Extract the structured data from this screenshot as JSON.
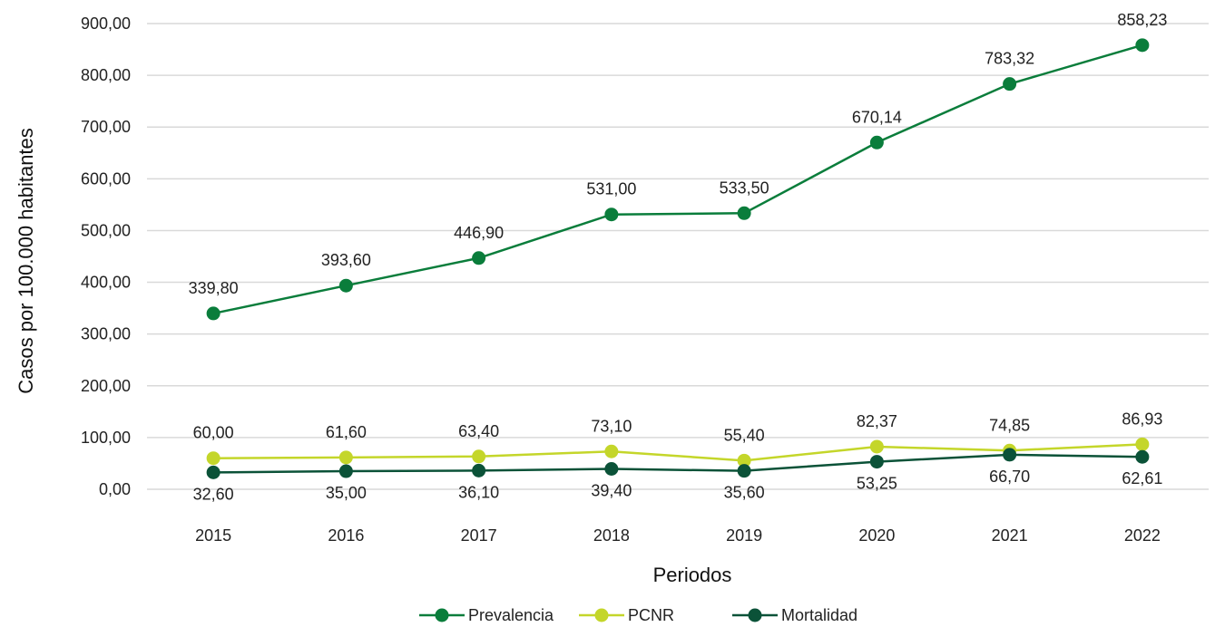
{
  "chart_data": {
    "type": "line",
    "title": "",
    "xlabel": "Periodos",
    "ylabel": "Casos por 100.000 habitantes",
    "ylim": [
      0,
      900
    ],
    "yticks": [
      "0,00",
      "100,00",
      "200,00",
      "300,00",
      "400,00",
      "500,00",
      "600,00",
      "700,00",
      "800,00",
      "900,00"
    ],
    "grid": "horizontal",
    "legend_position": "bottom",
    "categories": [
      "2015",
      "2016",
      "2017",
      "2018",
      "2019",
      "2020",
      "2021",
      "2022"
    ],
    "series": [
      {
        "name": "Prevalencia",
        "color": "#0a7d3b",
        "values": [
          339.8,
          393.6,
          446.9,
          531.0,
          533.5,
          670.14,
          783.32,
          858.23
        ],
        "labels": [
          "339,80",
          "393,60",
          "446,90",
          "531,00",
          "533,50",
          "670,14",
          "783,32",
          "858,23"
        ],
        "label_position": "above"
      },
      {
        "name": "PCNR",
        "color": "#c4d62a",
        "values": [
          60.0,
          61.6,
          63.4,
          73.1,
          55.4,
          82.37,
          74.85,
          86.93
        ],
        "labels": [
          "60,00",
          "61,60",
          "63,40",
          "73,10",
          "55,40",
          "82,37",
          "74,85",
          "86,93"
        ],
        "label_position": "above"
      },
      {
        "name": "Mortalidad",
        "color": "#0b5238",
        "values": [
          32.6,
          35.0,
          36.1,
          39.4,
          35.6,
          53.25,
          66.7,
          62.61
        ],
        "labels": [
          "32,60",
          "35,00",
          "36,10",
          "39,40",
          "35,60",
          "53,25",
          "66,70",
          "62,61"
        ],
        "label_position": "below"
      }
    ]
  }
}
